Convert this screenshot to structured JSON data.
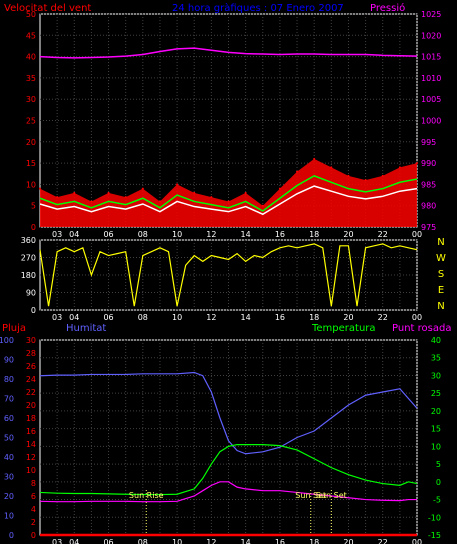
{
  "header": {
    "left_title": "Velocitat del vent",
    "center_title": "24 hora gràfiques : 07 Enero 2007",
    "right_title": "Pressió"
  },
  "colors": {
    "background": "#000000",
    "frame": "#ffffff",
    "grid": "#404040",
    "wind_speed": "#ff0000",
    "wind_avg": "#ffffff",
    "wind_mean": "#00ff00",
    "pressure": "#ff00ff",
    "direction": "#ffff00",
    "humidity": "#6060ff",
    "temperature": "#00ff00",
    "dewpoint": "#ff00ff",
    "rain": "#ff0000",
    "title_center": "#0000ff",
    "sun": "#ffff66"
  },
  "chart_data": [
    {
      "type": "line",
      "panel": "wind",
      "title": "24 hora gràfiques : 07 Enero 2007",
      "ylabel_left": "Velocitat del vent",
      "ylabel_right": "Pressió",
      "ylim_left": [
        0,
        50
      ],
      "ylim_right": [
        975,
        1025
      ],
      "yticks_left": [
        "0",
        "5",
        "10",
        "15",
        "20",
        "25",
        "30",
        "35",
        "40",
        "45",
        "50"
      ],
      "yticks_right": [
        "975",
        "980",
        "985",
        "990",
        "995",
        "1000",
        "1005",
        "1010",
        "1015",
        "1020",
        "1025"
      ],
      "xticks": [
        "03",
        "04",
        "05",
        "06",
        "07",
        "08",
        "09",
        "10",
        "11",
        "12",
        "13",
        "14",
        "15",
        "16",
        "17",
        "18",
        "19",
        "20",
        "21",
        "22",
        "23",
        "00"
      ],
      "xtick_labels_shown": [
        "03",
        "04",
        "06",
        "08",
        "10",
        "12",
        "14",
        "16",
        "18",
        "20",
        "22",
        "00"
      ],
      "x_hours": [
        2,
        3,
        4,
        5,
        6,
        7,
        8,
        9,
        10,
        11,
        12,
        13,
        14,
        15,
        16,
        17,
        18,
        19,
        20,
        21,
        22,
        23,
        24
      ],
      "series": [
        {
          "name": "Velocitat del vent",
          "axis": "left",
          "y": [
            9,
            7,
            8,
            6,
            8,
            7,
            9,
            6,
            10,
            8,
            7,
            6,
            8,
            5,
            9,
            13,
            16,
            14,
            12,
            11,
            12,
            14,
            15
          ]
        },
        {
          "name": "Pressió",
          "axis": "right",
          "y": [
            1015,
            1014.8,
            1014.7,
            1014.8,
            1014.9,
            1015.1,
            1015.5,
            1016.2,
            1016.8,
            1017.0,
            1016.5,
            1016.0,
            1015.7,
            1015.6,
            1015.5,
            1015.6,
            1015.6,
            1015.5,
            1015.5,
            1015.5,
            1015.3,
            1015.2,
            1015.1
          ]
        }
      ]
    },
    {
      "type": "line",
      "panel": "direction",
      "ylim": [
        0,
        360
      ],
      "yticks": [
        "0",
        "90",
        "180",
        "270",
        "360"
      ],
      "compass": [
        "N",
        "W",
        "S",
        "E",
        "N"
      ],
      "xticks": [
        "03",
        "04",
        "05",
        "06",
        "07",
        "08",
        "09",
        "10",
        "11",
        "12",
        "13",
        "14",
        "15",
        "16",
        "17",
        "18",
        "19",
        "20",
        "21",
        "22",
        "23",
        "00"
      ],
      "xtick_labels_shown": [
        "03",
        "04",
        "06",
        "08",
        "10",
        "12",
        "14",
        "16",
        "18",
        "20",
        "22",
        "00"
      ],
      "x_hours": [
        2,
        2.5,
        3,
        3.5,
        4,
        4.5,
        5,
        5.5,
        6,
        6.5,
        7,
        7.5,
        8,
        8.5,
        9,
        9.5,
        10,
        10.5,
        11,
        11.5,
        12,
        12.5,
        13,
        13.5,
        14,
        14.5,
        15,
        15.5,
        16,
        16.5,
        17,
        17.5,
        18,
        18.5,
        19,
        19.5,
        20,
        20.5,
        21,
        21.5,
        22,
        22.5,
        23,
        23.5,
        24
      ],
      "series": [
        {
          "name": "Direcció",
          "y": [
            310,
            20,
            300,
            320,
            300,
            320,
            180,
            300,
            280,
            290,
            300,
            20,
            280,
            300,
            320,
            300,
            20,
            230,
            280,
            250,
            280,
            270,
            260,
            290,
            250,
            280,
            270,
            300,
            320,
            330,
            320,
            330,
            340,
            320,
            20,
            330,
            330,
            20,
            320,
            330,
            340,
            320,
            330,
            320,
            310
          ]
        }
      ]
    },
    {
      "type": "line",
      "panel": "humidity-temperature",
      "ylabel_left_1": "Pluja",
      "ylabel_left_2": "Humitat",
      "ylabel_right_1": "Temperatura",
      "ylabel_right_2": "Punt rosada",
      "ylim_rain": [
        0,
        100
      ],
      "ylim_humidity": [
        0,
        30
      ],
      "ylim_temperature": [
        -15,
        40
      ],
      "yticks_rain": [
        "0",
        "10",
        "20",
        "30",
        "40",
        "50",
        "60",
        "70",
        "80",
        "90",
        "100"
      ],
      "yticks_humidity": [
        "0",
        "2",
        "4",
        "6",
        "8",
        "10",
        "12",
        "14",
        "16",
        "18",
        "20",
        "22",
        "24",
        "26",
        "28",
        "30"
      ],
      "yticks_temperature": [
        "-15",
        "-10",
        "-5",
        "0",
        "5",
        "10",
        "15",
        "20",
        "25",
        "30",
        "35",
        "40"
      ],
      "xticks": [
        "03",
        "04",
        "05",
        "06",
        "07",
        "08",
        "09",
        "10",
        "11",
        "12",
        "13",
        "14",
        "15",
        "16",
        "17",
        "18",
        "19",
        "20",
        "21",
        "22",
        "23",
        "00"
      ],
      "xtick_labels_shown": [
        "03",
        "04",
        "06",
        "08",
        "10",
        "12",
        "14",
        "16",
        "18",
        "20",
        "22",
        "00"
      ],
      "x_hours": [
        2,
        3,
        4,
        5,
        6,
        7,
        8,
        9,
        10,
        11,
        11.5,
        12,
        12.5,
        13,
        13.5,
        14,
        15,
        16,
        17,
        18,
        19,
        20,
        21,
        22,
        23,
        23.5,
        24
      ],
      "annotations": [
        {
          "text": "Sun Rise",
          "hour": 8.2
        },
        {
          "text": "Sun Set",
          "hour": 17.8
        },
        {
          "text": "Sun Set",
          "hour": 19.0
        }
      ],
      "series": [
        {
          "name": "Humitat",
          "axis": "humidity",
          "y": [
            24.5,
            24.6,
            24.6,
            24.7,
            24.7,
            24.7,
            24.8,
            24.8,
            24.8,
            25.0,
            24.5,
            22.0,
            18.0,
            14.5,
            13.0,
            12.5,
            12.8,
            13.5,
            15.0,
            16.0,
            18.0,
            20.0,
            21.5,
            22.0,
            22.5,
            21.0,
            19.5
          ]
        },
        {
          "name": "Temperatura",
          "axis": "temperature",
          "y": [
            -3.0,
            -3.2,
            -3.3,
            -3.3,
            -3.4,
            -3.5,
            -3.6,
            -3.6,
            -3.5,
            -2.0,
            1.0,
            5.0,
            8.5,
            10.0,
            10.5,
            10.5,
            10.5,
            10.2,
            9.0,
            6.5,
            4.0,
            2.0,
            0.5,
            -0.5,
            -1.0,
            0.0,
            -0.5
          ]
        },
        {
          "name": "Punt rosada",
          "axis": "temperature",
          "y": [
            -5.5,
            -5.6,
            -5.6,
            -5.5,
            -5.5,
            -5.5,
            -5.6,
            -5.6,
            -5.5,
            -4.0,
            -2.5,
            -1.0,
            0.0,
            0.0,
            -1.5,
            -2.0,
            -2.5,
            -2.5,
            -3.0,
            -3.5,
            -4.0,
            -4.5,
            -5.0,
            -5.2,
            -5.3,
            -5.0,
            -5.0
          ]
        },
        {
          "name": "Pluja",
          "axis": "rain",
          "y": [
            0,
            0,
            0,
            0,
            0,
            0,
            0,
            0,
            0,
            0,
            0,
            0,
            0,
            0,
            0,
            0,
            0,
            0,
            0,
            0,
            0,
            0,
            0,
            0,
            0,
            0,
            0
          ]
        }
      ]
    }
  ]
}
